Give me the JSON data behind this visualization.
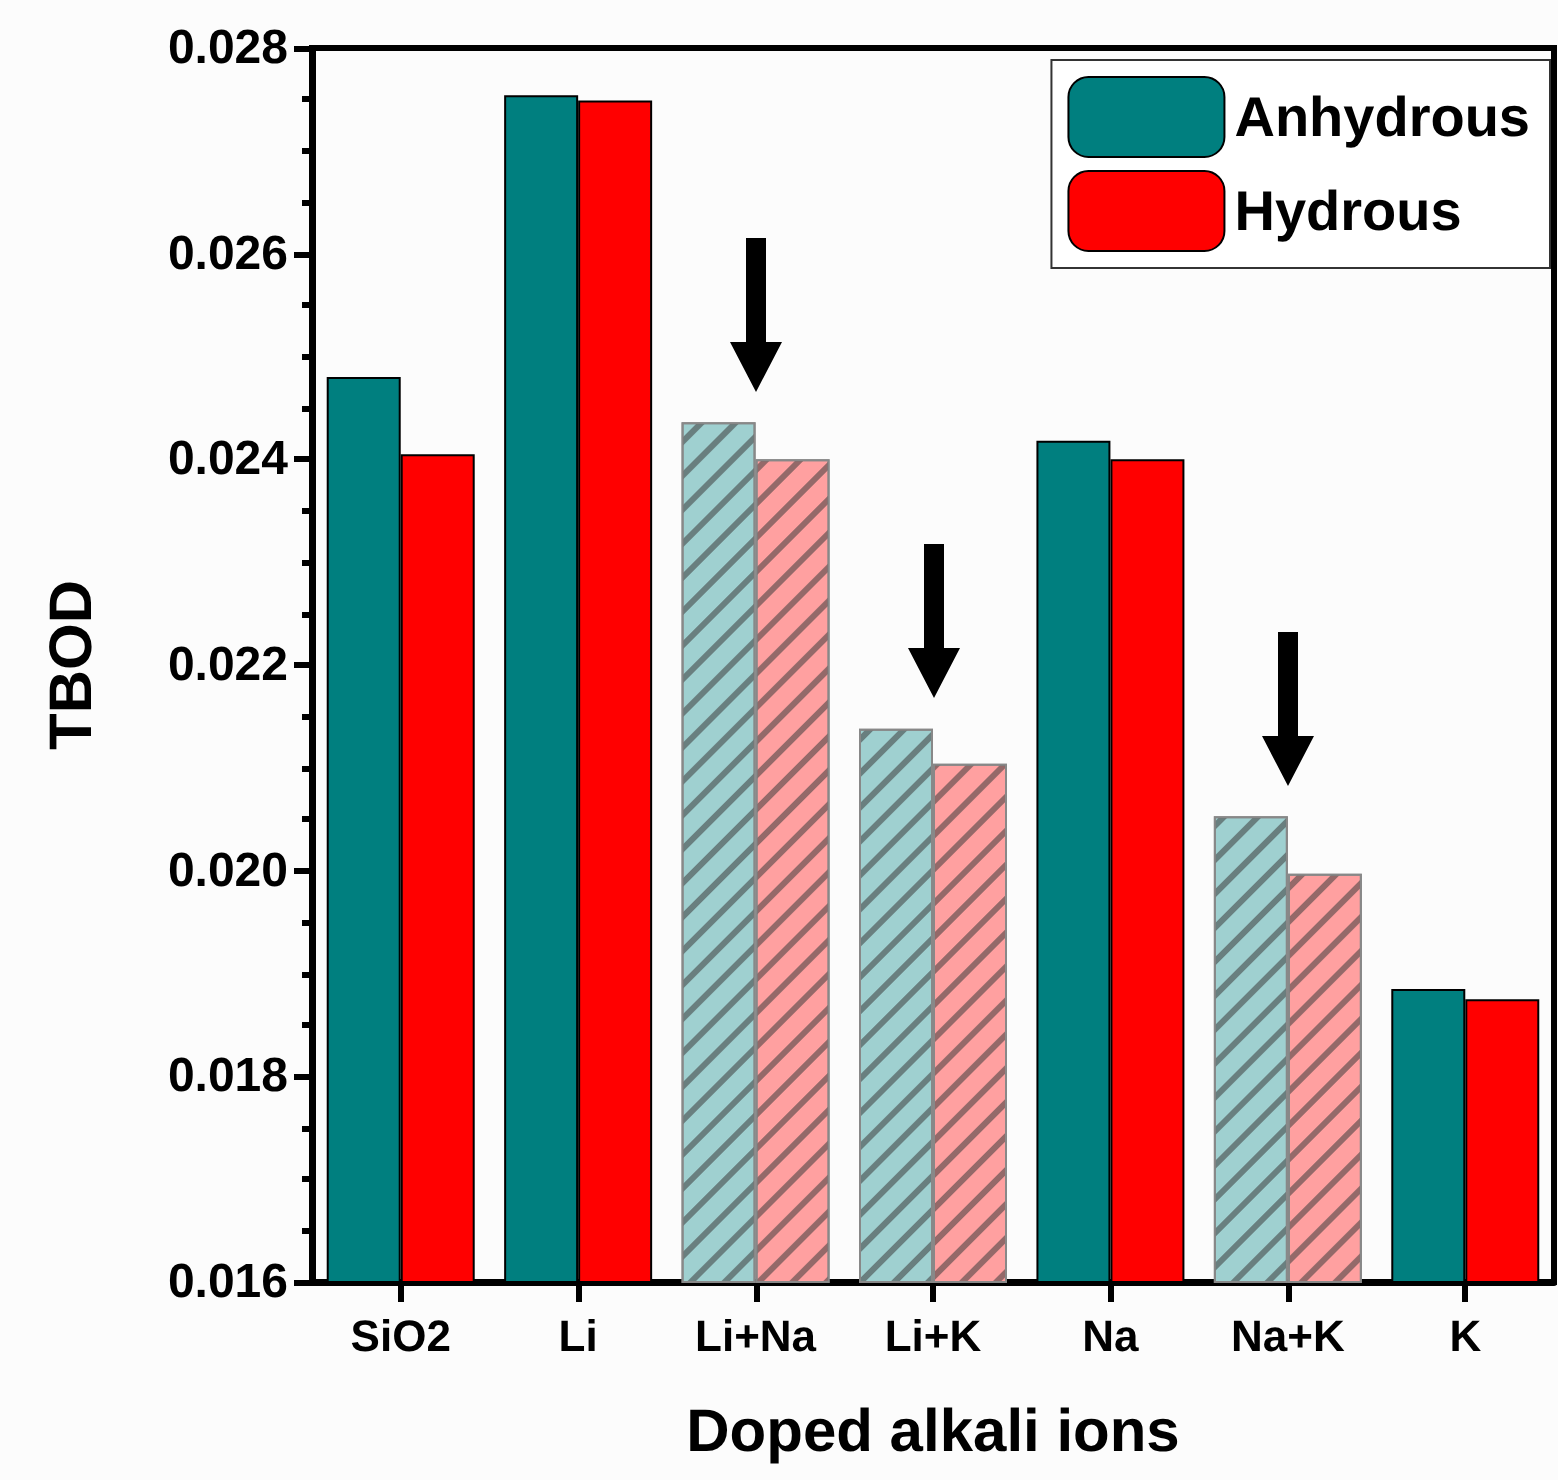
{
  "chart_data": {
    "type": "bar",
    "xlabel": "Doped alkali ions",
    "ylabel": "TBOD",
    "categories": [
      "SiO2",
      "Li",
      "Li+Na",
      "Li+K",
      "Na",
      "Na+K",
      "K"
    ],
    "series": [
      {
        "name": "Anhydrous",
        "color": "#007f7f",
        "colors": [
          "#007f7f",
          "#007f7f",
          "#9fd0d0",
          "#9fd0d0",
          "#007f7f",
          "#9fd0d0",
          "#007f7f"
        ],
        "values": [
          0.0248,
          0.02754,
          0.02436,
          0.02138,
          0.02418,
          0.02053,
          0.01885
        ]
      },
      {
        "name": "Hydrous",
        "color": "#ff0000",
        "colors": [
          "#ff0000",
          "#ff0000",
          "#ffa0a0",
          "#ffa0a0",
          "#ff0000",
          "#ffa0a0",
          "#ff0000"
        ],
        "values": [
          0.02405,
          0.02749,
          0.024,
          0.02104,
          0.024,
          0.01997,
          0.01875
        ]
      }
    ],
    "ylim": [
      0.016,
      0.028
    ],
    "yticks": [
      0.016,
      0.018,
      {
        "value": 0.02,
        "label": "0.020"
      },
      0.022,
      0.024,
      0.026,
      0.028
    ],
    "legend": "top right",
    "grid": false
  }
}
